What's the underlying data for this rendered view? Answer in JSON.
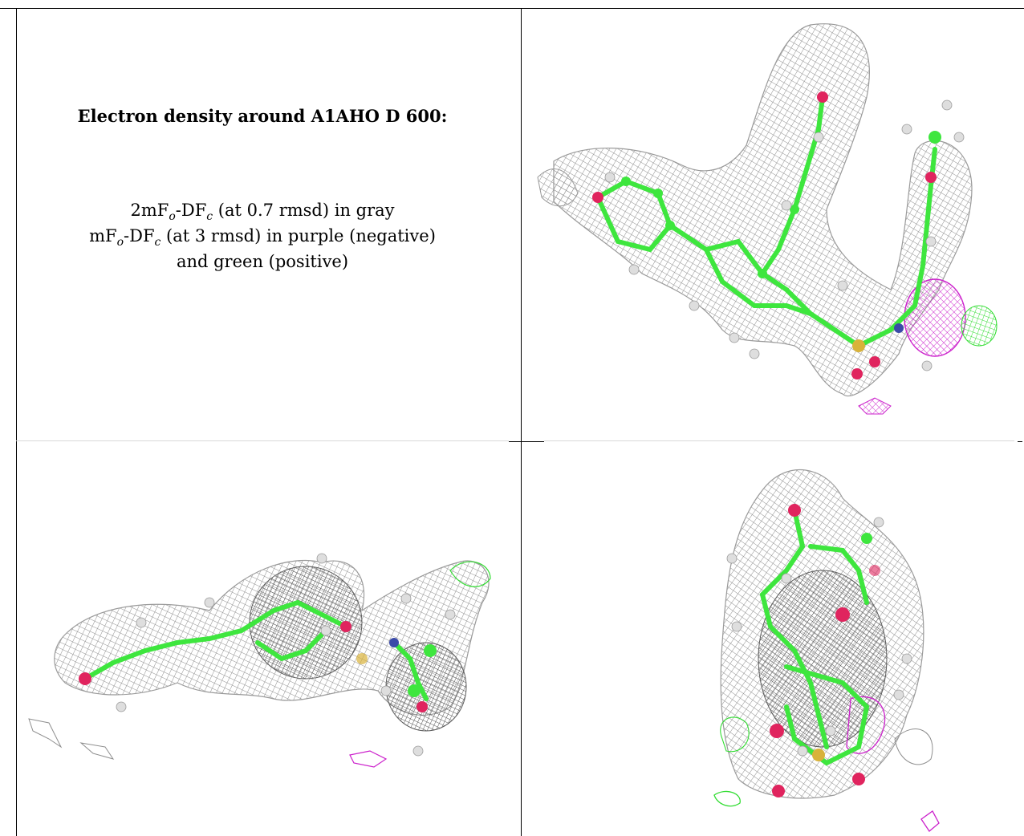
{
  "caption": {
    "title": "Electron density around A1AHO D 600:",
    "line1_prefix": "2mF",
    "line1_sub1": "o",
    "line1_mid": "-DF",
    "line1_sub2": "c",
    "line1_suffix": " (at 0.7 rmsd) in gray",
    "line2_prefix": "mF",
    "line2_sub1": "o",
    "line2_mid": "-DF",
    "line2_sub2": "c",
    "line2_suffix": " (at 3 rmsd) in purple (negative)",
    "line3": "and green (positive)"
  },
  "colors": {
    "mesh_gray": "#9a9a9a",
    "mesh_dark": "#5a5a5a",
    "carbon_green": "#3ee63e",
    "oxygen_red": "#e0245e",
    "nitrogen_blue": "#3a4aa8",
    "sulfur_yellow": "#d8b23a",
    "hydrogen_white": "#dedede",
    "negative_purple": "#cc22cc",
    "positive_green": "#33dd33"
  },
  "panels": [
    {
      "name": "view-top-right",
      "content": "density-mesh-render"
    },
    {
      "name": "view-bottom-left",
      "content": "density-mesh-render"
    },
    {
      "name": "view-bottom-right",
      "content": "density-mesh-render"
    }
  ]
}
